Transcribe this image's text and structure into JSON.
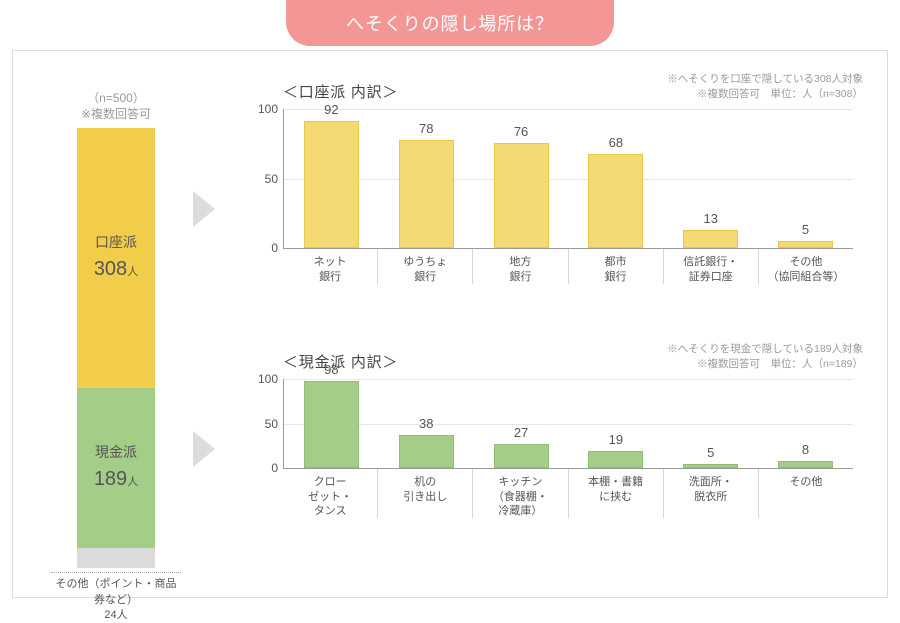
{
  "title": "へそくりの隠し場所は？",
  "colors": {
    "banner_bg": "#f39696",
    "banner_text": "#ffffff",
    "frame_border": "#dcdcdc",
    "yellow": "#f2cd49",
    "yellow_light": "#f5da74",
    "green": "#a4ce87",
    "gray": "#dcdcdc",
    "text": "#555555",
    "muted": "#9a9a9a",
    "grid": "#e6e6e6"
  },
  "stacked": {
    "note_line1": "（n=500）",
    "note_line2": "※複数回答可",
    "total": 500,
    "segments": [
      {
        "key": "account",
        "label": "口座派",
        "count": 308,
        "unit": "人",
        "color": "yellow",
        "height_pct": 59.1
      },
      {
        "key": "cash",
        "label": "現金派",
        "count": 189,
        "unit": "人",
        "color": "green",
        "height_pct": 36.3
      },
      {
        "key": "other",
        "label": "",
        "count": 24,
        "unit": "人",
        "color": "gray",
        "height_pct": 4.6
      }
    ],
    "other_label": "その他（ポイント・商品券など）",
    "other_count_text": "24人"
  },
  "chart_account": {
    "type": "bar",
    "title": "＜口座派  内訳＞",
    "meta_line1": "※へそくりを口座で隠している308人対象",
    "meta_line2": "※複数回答可　単位：人（n=308）",
    "ylim": [
      0,
      100
    ],
    "yticks": [
      0,
      50,
      100
    ],
    "bar_color": "#f5da74",
    "categories": [
      {
        "label_lines": [
          "ネット",
          "銀行"
        ],
        "value": 92
      },
      {
        "label_lines": [
          "ゆうちょ",
          "銀行"
        ],
        "value": 78
      },
      {
        "label_lines": [
          "地方",
          "銀行"
        ],
        "value": 76
      },
      {
        "label_lines": [
          "都市",
          "銀行"
        ],
        "value": 68
      },
      {
        "label_lines": [
          "信託銀行・",
          "証券口座"
        ],
        "value": 13
      },
      {
        "label_lines": [
          "その他",
          "（協同組合等）"
        ],
        "value": 5
      }
    ]
  },
  "chart_cash": {
    "type": "bar",
    "title": "＜現金派  内訳＞",
    "meta_line1": "※へそくりを現金で隠している189人対象",
    "meta_line2": "※複数回答可　単位：人（n=189）",
    "ylim": [
      0,
      100
    ],
    "yticks": [
      0,
      50,
      100
    ],
    "bar_color": "#a4ce87",
    "categories": [
      {
        "label_lines": [
          "クロー",
          "ゼット・",
          "タンス"
        ],
        "value": 98
      },
      {
        "label_lines": [
          "机の",
          "引き出し"
        ],
        "value": 38
      },
      {
        "label_lines": [
          "キッチン",
          "（食器棚・",
          "冷蔵庫）"
        ],
        "value": 27
      },
      {
        "label_lines": [
          "本棚・書籍",
          "に挟む"
        ],
        "value": 19
      },
      {
        "label_lines": [
          "洗面所・",
          "脱衣所"
        ],
        "value": 5
      },
      {
        "label_lines": [
          "その他"
        ],
        "value": 8
      }
    ]
  }
}
